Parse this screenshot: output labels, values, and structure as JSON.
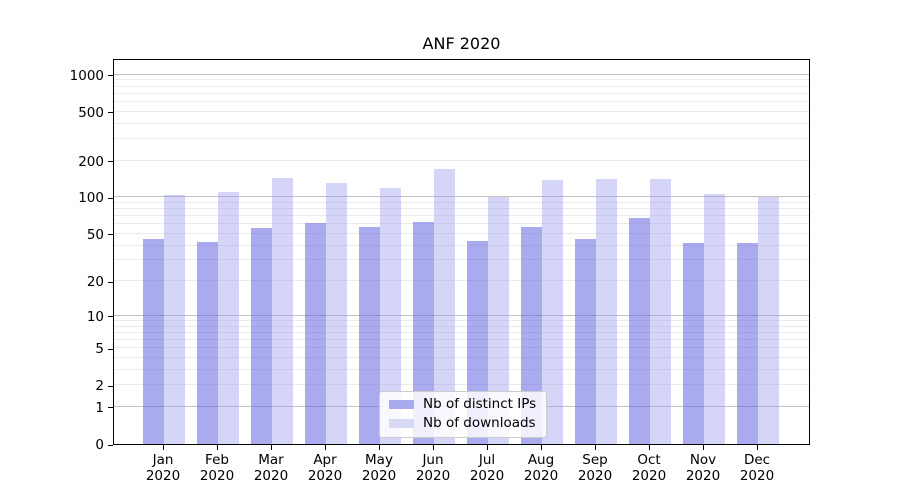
{
  "chart_data": {
    "type": "bar",
    "title": "ANF 2020",
    "categories": [
      "Jan",
      "Feb",
      "Mar",
      "Apr",
      "May",
      "Jun",
      "Jul",
      "Aug",
      "Sep",
      "Oct",
      "Nov",
      "Dec"
    ],
    "year_label": "2020",
    "series": [
      {
        "name": "Nb of distinct IPs",
        "color": "#a9a9ee",
        "bar_fill": "rgba(100,100,225,0.55)",
        "values": [
          45,
          43,
          56,
          62,
          57,
          63,
          44,
          57,
          45,
          68,
          42,
          42
        ]
      },
      {
        "name": "Nb of downloads",
        "color": "#d8d8f7",
        "bar_fill": "rgba(150,150,235,0.40)",
        "values": [
          105,
          110,
          145,
          130,
          120,
          170,
          100,
          138,
          142,
          140,
          107,
          100
        ]
      }
    ],
    "yscale": "log10(value+1)",
    "ylim": [
      0,
      1370
    ],
    "yticks": [
      1000,
      500,
      200,
      100,
      50,
      20,
      10,
      5,
      2,
      1,
      0
    ],
    "major_grid_values": [
      1,
      10,
      100,
      1000
    ],
    "grid": "both",
    "legend_position": "lower center",
    "colors": {
      "major_grid": "#c2c2c2",
      "minor_grid": "#ebebeb",
      "spine": "#000000",
      "text": "#000000"
    }
  }
}
